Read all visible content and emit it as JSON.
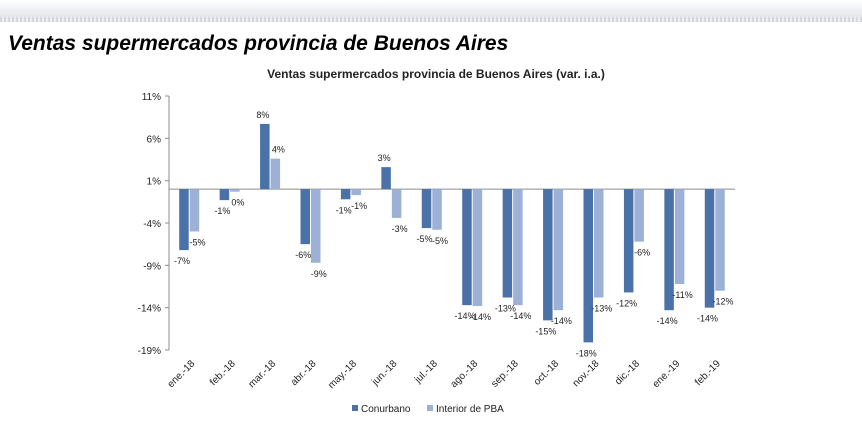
{
  "page": {
    "title": "Ventas supermercados provincia de Buenos Aires"
  },
  "chart_data": {
    "type": "bar",
    "title": "Ventas supermercados provincia de Buenos Aires (var. i.a.)",
    "xlabel": "",
    "ylabel": "",
    "ylim": [
      -19,
      11
    ],
    "yticks": [
      "11%",
      "6%",
      "1%",
      "-4%",
      "-9%",
      "-14%",
      "-19%"
    ],
    "grid": false,
    "legend_position": "bottom",
    "categories": [
      "ene.-18",
      "feb.-18",
      "mar.-18",
      "abr.-18",
      "may.-18",
      "jun.-18",
      "jul.-18",
      "ago.-18",
      "sep.-18",
      "oct.-18",
      "nov.-18",
      "dic.-18",
      "ene.-19",
      "feb.-19"
    ],
    "series": [
      {
        "name": "Conurbano",
        "color": "#4a72a8",
        "values": [
          -7.2,
          -1.3,
          7.7,
          -6.5,
          -1.2,
          2.6,
          -4.6,
          -13.7,
          -12.8,
          -15.5,
          -18.1,
          -12.2,
          -14.3,
          -14.0
        ],
        "labels": [
          "-7%",
          "-1%",
          "8%",
          "-6%",
          "-1%",
          "3%",
          "-5%",
          "-14%",
          "-13%",
          "-15%",
          "-18%",
          "-12%",
          "-14%",
          "-14%"
        ]
      },
      {
        "name": "Interior de PBA",
        "color": "#9db1d6",
        "values": [
          -5.0,
          -0.3,
          3.6,
          -8.7,
          -0.7,
          -3.4,
          -4.8,
          -13.8,
          -13.7,
          -14.3,
          -12.8,
          -6.2,
          -11.2,
          -12.0
        ],
        "labels": [
          "-5%",
          "0%",
          "4%",
          "-9%",
          "-1%",
          "-3%",
          "-5%",
          "-14%",
          "-14%",
          "-14%",
          "-13%",
          "-6%",
          "-11%",
          "-12%"
        ]
      }
    ]
  }
}
